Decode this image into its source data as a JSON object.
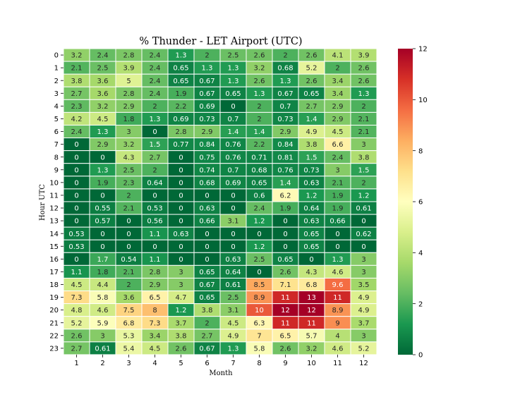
{
  "chart_data": {
    "type": "heatmap",
    "title": "% Thunder - LET Airport (UTC)",
    "xlabel": "Month",
    "ylabel": "Hour UTC",
    "x_categories": [
      "1",
      "2",
      "3",
      "4",
      "5",
      "6",
      "7",
      "8",
      "9",
      "10",
      "11",
      "12"
    ],
    "y_categories": [
      "0",
      "1",
      "2",
      "3",
      "4",
      "5",
      "6",
      "7",
      "8",
      "9",
      "10",
      "11",
      "12",
      "13",
      "14",
      "15",
      "16",
      "17",
      "18",
      "19",
      "20",
      "21",
      "22",
      "23"
    ],
    "colormap": "RdYlGn_r",
    "color_range": [
      0,
      12
    ],
    "colorbar_ticks": [
      "0",
      "2",
      "4",
      "6",
      "8",
      "10",
      "12"
    ],
    "grid": false,
    "values": [
      [
        "3.2",
        "2.4",
        "2.8",
        "2.4",
        "1.3",
        "2",
        "2.5",
        "2.6",
        "2",
        "2.6",
        "4.1",
        "3.9"
      ],
      [
        "2.1",
        "2.5",
        "3.9",
        "2.4",
        "0.65",
        "1.3",
        "1.3",
        "3.2",
        "0.68",
        "5.2",
        "2",
        "2.6"
      ],
      [
        "3.8",
        "3.6",
        "5",
        "2.4",
        "0.65",
        "0.67",
        "1.3",
        "2.6",
        "1.3",
        "2.6",
        "3.4",
        "2.6"
      ],
      [
        "2.7",
        "3.6",
        "2.8",
        "2.4",
        "1.9",
        "0.67",
        "0.65",
        "1.3",
        "0.67",
        "0.65",
        "3.4",
        "1.3"
      ],
      [
        "2.3",
        "3.2",
        "2.9",
        "2",
        "2.2",
        "0.69",
        "0",
        "2",
        "0.7",
        "2.7",
        "2.9",
        "2"
      ],
      [
        "4.2",
        "4.5",
        "1.8",
        "1.3",
        "0.69",
        "0.73",
        "0.7",
        "2",
        "0.73",
        "1.4",
        "2.9",
        "2.1"
      ],
      [
        "2.4",
        "1.3",
        "3",
        "0",
        "2.8",
        "2.9",
        "1.4",
        "1.4",
        "2.9",
        "4.9",
        "4.5",
        "2.1"
      ],
      [
        "0",
        "2.9",
        "3.2",
        "1.5",
        "0.77",
        "0.84",
        "0.76",
        "2.2",
        "0.84",
        "3.8",
        "6.6",
        "3"
      ],
      [
        "0",
        "0",
        "4.3",
        "2.7",
        "0",
        "0.75",
        "0.76",
        "0.71",
        "0.81",
        "1.5",
        "2.4",
        "3.8"
      ],
      [
        "0",
        "1.3",
        "2.5",
        "2",
        "0",
        "0.74",
        "0.7",
        "0.68",
        "0.76",
        "0.73",
        "3",
        "1.5"
      ],
      [
        "0",
        "1.9",
        "2.3",
        "0.64",
        "0",
        "0.68",
        "0.69",
        "0.65",
        "1.4",
        "0.63",
        "2.1",
        "2"
      ],
      [
        "0",
        "0",
        "2",
        "0",
        "0",
        "0",
        "0",
        "0.6",
        "6.2",
        "1.2",
        "1.9",
        "1.2"
      ],
      [
        "0",
        "0.55",
        "2.1",
        "0.53",
        "0",
        "0.63",
        "0",
        "2.4",
        "1.9",
        "0.64",
        "1.9",
        "0.61"
      ],
      [
        "0",
        "0.57",
        "0",
        "0.56",
        "0",
        "0.66",
        "3.1",
        "1.2",
        "0",
        "0.63",
        "0.66",
        "0"
      ],
      [
        "0.53",
        "0",
        "0",
        "1.1",
        "0.63",
        "0",
        "0",
        "0",
        "0",
        "0.65",
        "0",
        "0.62"
      ],
      [
        "0.53",
        "0",
        "0",
        "0",
        "0",
        "0",
        "0",
        "1.2",
        "0",
        "0.65",
        "0",
        "0"
      ],
      [
        "0",
        "1.7",
        "0.54",
        "1.1",
        "0",
        "0",
        "0.63",
        "2.5",
        "0.65",
        "0",
        "1.3",
        "3"
      ],
      [
        "1.1",
        "1.8",
        "2.1",
        "2.8",
        "3",
        "0.65",
        "0.64",
        "0",
        "2.6",
        "4.3",
        "4.6",
        "3"
      ],
      [
        "4.5",
        "4.4",
        "2",
        "2.9",
        "3",
        "0.67",
        "0.61",
        "8.5",
        "7.1",
        "6.8",
        "9.6",
        "3.5"
      ],
      [
        "7.3",
        "5.8",
        "3.6",
        "6.5",
        "4.7",
        "0.65",
        "2.5",
        "8.9",
        "11",
        "13",
        "11",
        "4.9"
      ],
      [
        "4.8",
        "4.6",
        "7.5",
        "8",
        "1.2",
        "3.8",
        "3.1",
        "10",
        "12",
        "12",
        "8.9",
        "4.9"
      ],
      [
        "5.2",
        "5.9",
        "6.8",
        "7.3",
        "3.7",
        "2",
        "4.5",
        "6.3",
        "11",
        "11",
        "9",
        "3.7"
      ],
      [
        "2.6",
        "3",
        "5.3",
        "3.4",
        "3.8",
        "2.7",
        "4.9",
        "7",
        "6.5",
        "5.7",
        "4",
        "3"
      ],
      [
        "2.7",
        "0.61",
        "5.4",
        "4.5",
        "2.6",
        "0.67",
        "1.3",
        "5.8",
        "2.6",
        "3.2",
        "4.6",
        "5.2"
      ]
    ]
  }
}
